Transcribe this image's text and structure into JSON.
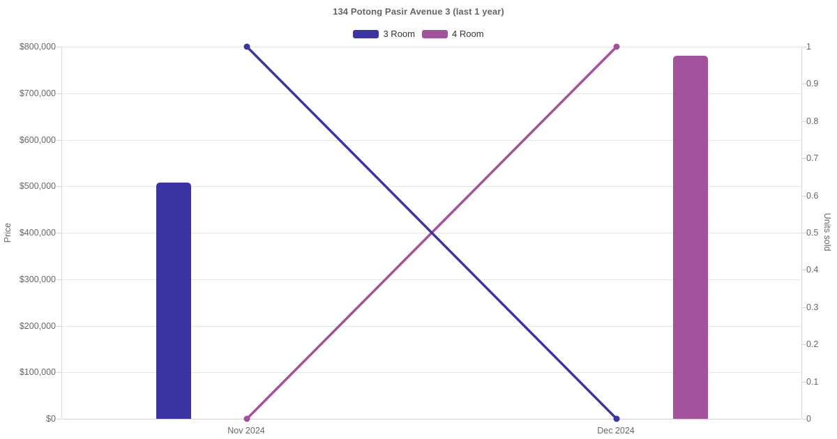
{
  "chart_data": {
    "type": "bar+line",
    "title": "134 Potong Pasir Avenue 3 (last 1 year)",
    "categories": [
      "Nov 2024",
      "Dec 2024"
    ],
    "series": [
      {
        "name": "3 Room",
        "type": "bar",
        "axis": "left",
        "color": "#3B35A3",
        "values": [
          508000,
          null
        ]
      },
      {
        "name": "4 Room",
        "type": "bar",
        "axis": "left",
        "color": "#A1529B",
        "values": [
          null,
          780000
        ]
      },
      {
        "name": "3 Room",
        "type": "line",
        "axis": "right",
        "color": "#3B35A3",
        "values": [
          1,
          0
        ]
      },
      {
        "name": "4 Room",
        "type": "line",
        "axis": "right",
        "color": "#A1529B",
        "values": [
          0,
          1
        ]
      }
    ],
    "left_axis": {
      "title": "Price",
      "min": 0,
      "max": 800000,
      "tick_labels": [
        "$800,000",
        "$700,000",
        "$600,000",
        "$500,000",
        "$400,000",
        "$300,000",
        "$200,000",
        "$100,000",
        "$0"
      ]
    },
    "right_axis": {
      "title": "Units sold",
      "min": 0,
      "max": 1,
      "tick_labels": [
        "1",
        "0.9",
        "0.8",
        "0.7",
        "0.6",
        "0.5",
        "0.4",
        "0.3",
        "0.2",
        "0.1",
        "0"
      ]
    },
    "legend": [
      {
        "label": "3 Room",
        "color": "#3B35A3"
      },
      {
        "label": "4 Room",
        "color": "#A1529B"
      }
    ],
    "legend_position": "top",
    "grid": true,
    "background": "#ffffff"
  }
}
